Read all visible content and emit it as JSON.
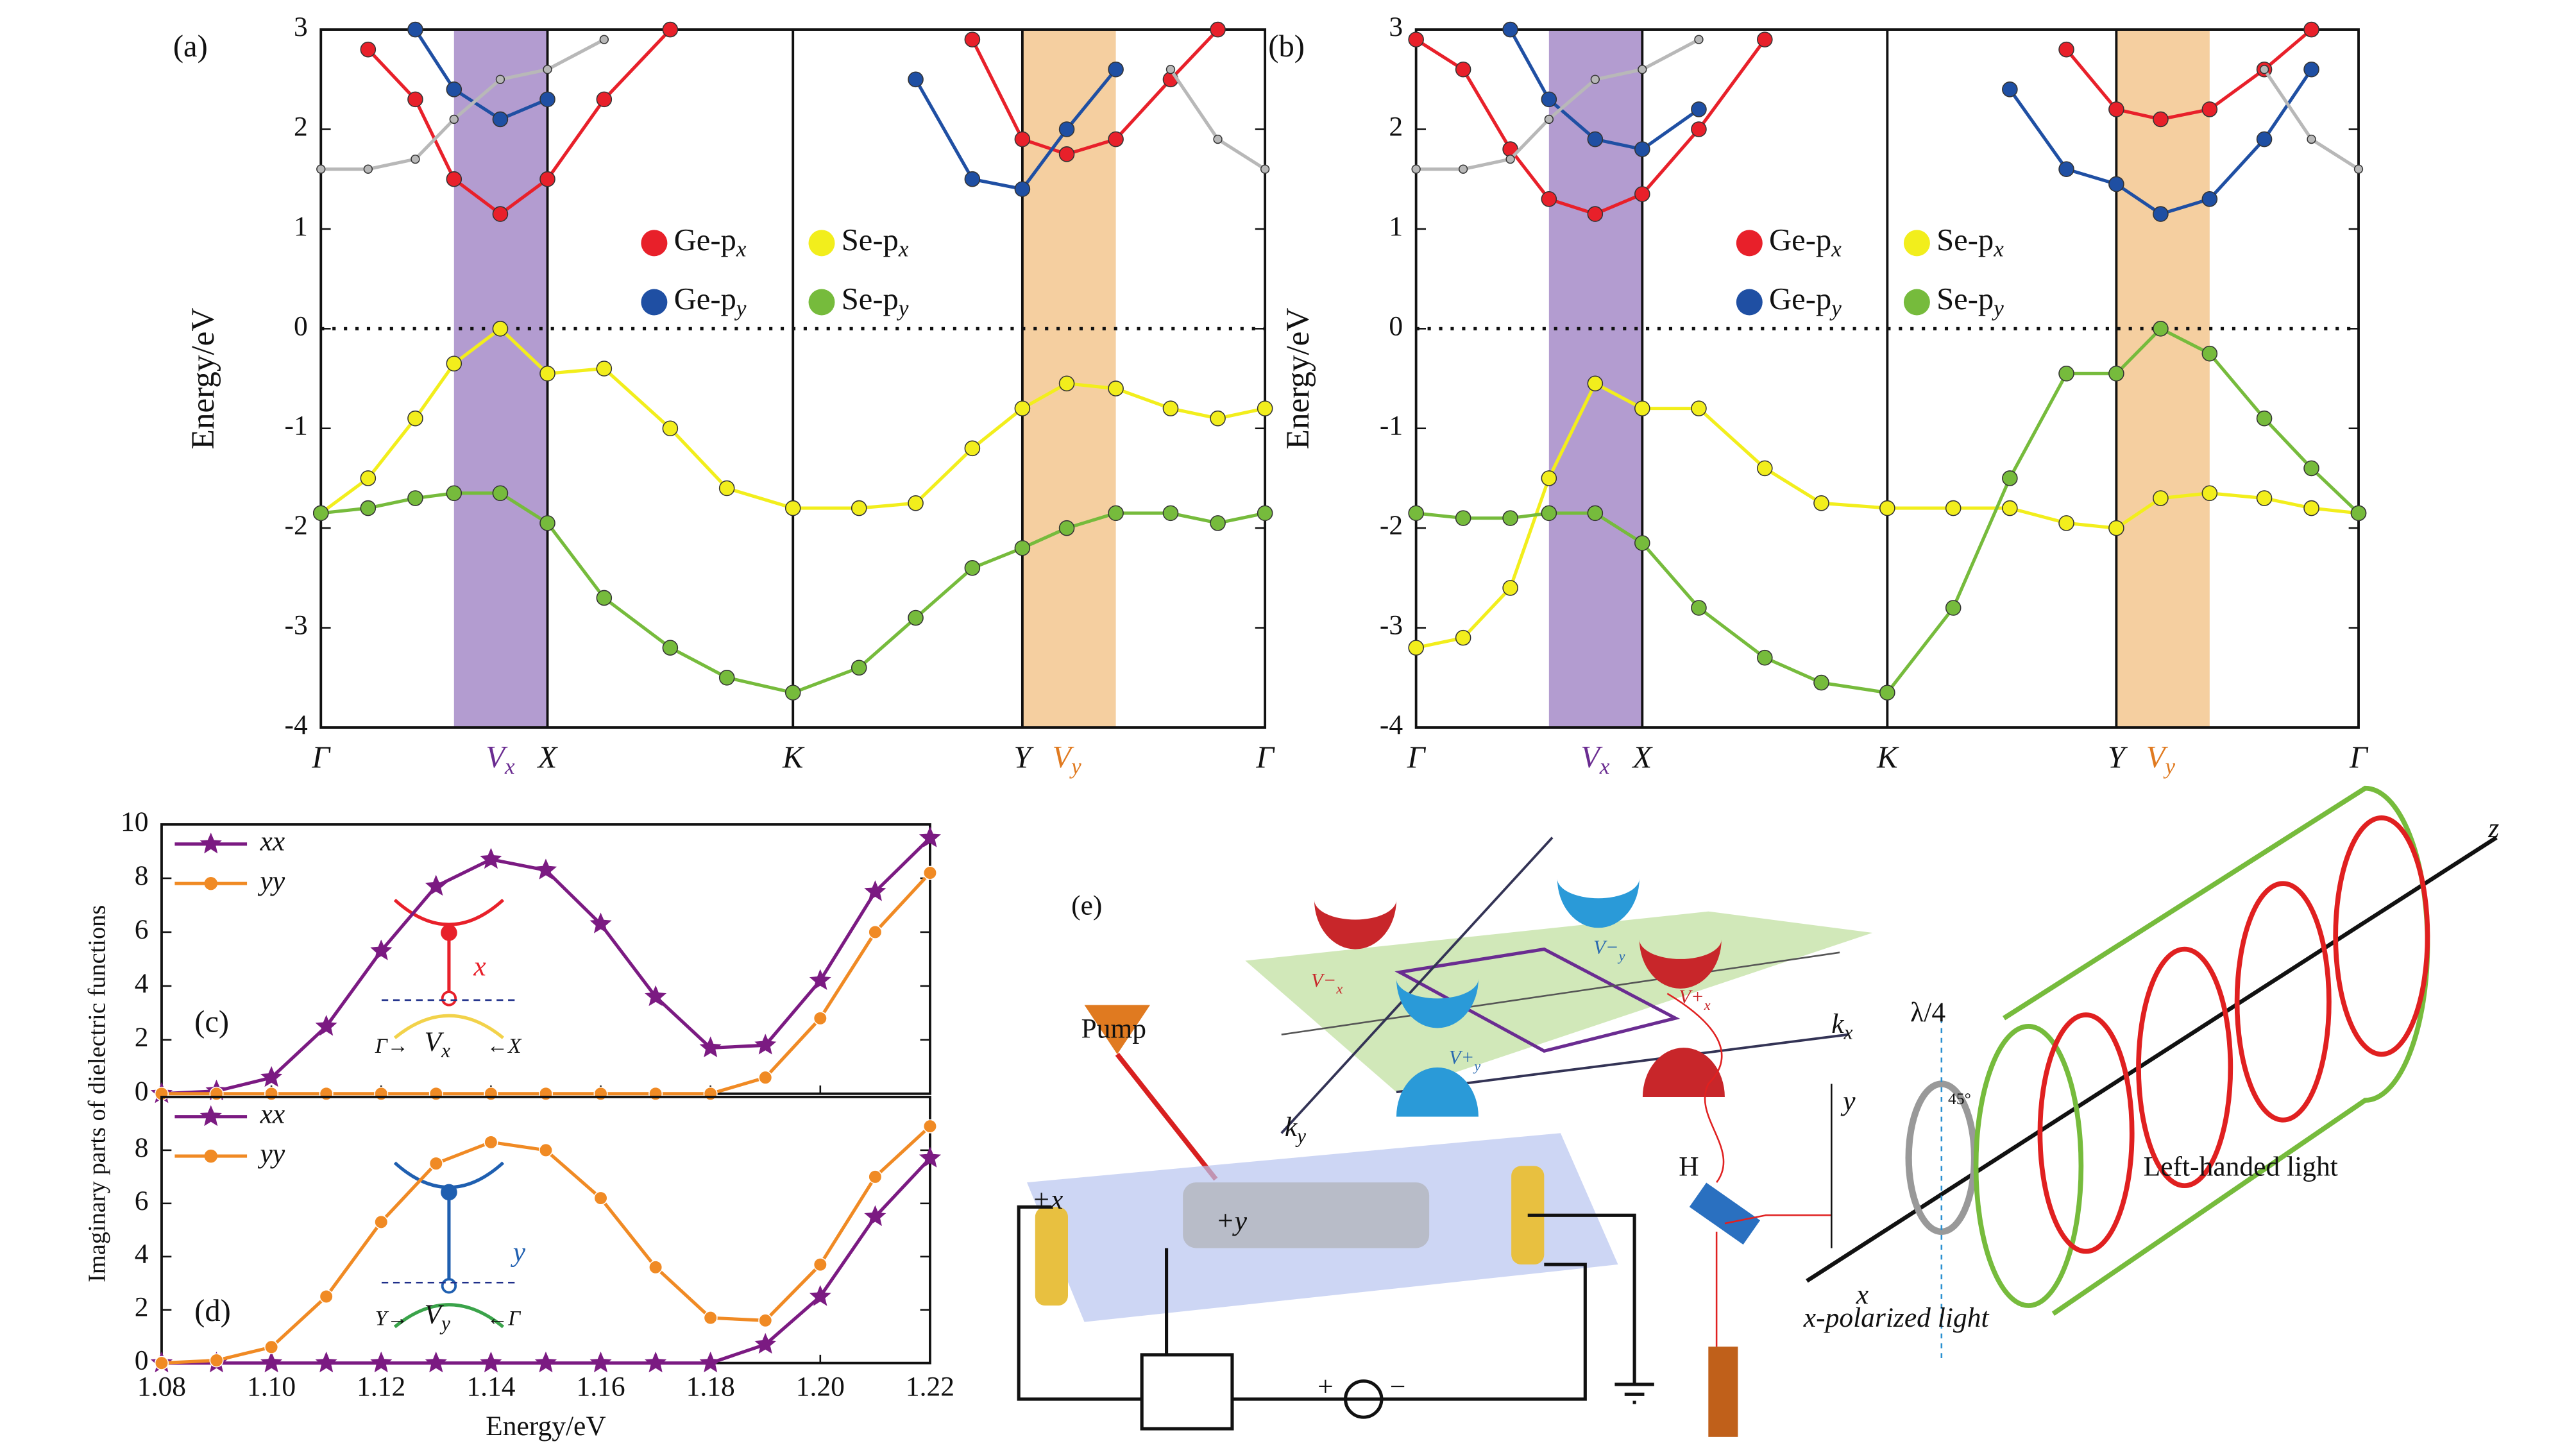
{
  "chart_data": [
    {
      "type": "band",
      "label": "(a)",
      "ylabel": "Energy/eV",
      "xlim": [
        0,
        1
      ],
      "ylim": [
        -4,
        3
      ],
      "yticks": [
        -4,
        -3,
        -2,
        -1,
        0,
        1,
        2,
        3
      ],
      "hline": 0,
      "xticks": [
        {
          "value": 0,
          "label": "Γ"
        },
        {
          "value": 0.19,
          "label": "Vx"
        },
        {
          "value": 0.24,
          "label": "X"
        },
        {
          "value": 0.5,
          "label": "K"
        },
        {
          "value": 0.743,
          "label": "Y"
        },
        {
          "value": 0.79,
          "label": "Vy"
        },
        {
          "value": 1,
          "label": "Γ"
        }
      ],
      "shaded_regions": [
        {
          "x": [
            0.141,
            0.24
          ],
          "color": "#b39cd0"
        },
        {
          "x": [
            0.743,
            0.842
          ],
          "color": "#f5cfa0"
        }
      ],
      "x": [
        0,
        0.05,
        0.1,
        0.141,
        0.19,
        0.24,
        0.3,
        0.37,
        0.43,
        0.5,
        0.57,
        0.63,
        0.69,
        0.743,
        0.79,
        0.842,
        0.9,
        0.95,
        1
      ],
      "series": [
        {
          "name": "Ge-px",
          "color": "#e8202a",
          "values": [
            null,
            2.8,
            2.3,
            1.5,
            1.15,
            1.5,
            2.3,
            3.0,
            null,
            null,
            null,
            null,
            2.9,
            1.9,
            1.75,
            1.9,
            2.5,
            3.0,
            null
          ]
        },
        {
          "name": "Se-px",
          "color": "#f2ee1c",
          "values": [
            -1.85,
            -1.5,
            -0.9,
            -0.35,
            0,
            -0.45,
            -0.4,
            -1.0,
            -1.6,
            -1.8,
            -1.8,
            -1.75,
            -1.2,
            -0.8,
            -0.55,
            -0.6,
            -0.8,
            -0.9,
            -0.8
          ]
        },
        {
          "name": "Ge-py",
          "color": "#1f4fa3",
          "values": [
            null,
            null,
            3.0,
            2.4,
            2.1,
            2.3,
            null,
            null,
            null,
            null,
            null,
            2.5,
            1.5,
            1.4,
            2.0,
            2.6,
            null,
            null,
            null
          ]
        },
        {
          "name": "Se-py",
          "color": "#76bb3c",
          "values": [
            -1.85,
            -1.8,
            -1.7,
            -1.65,
            -1.65,
            -1.95,
            -2.7,
            -3.2,
            -3.5,
            -3.65,
            -3.4,
            -2.9,
            -2.4,
            -2.2,
            -2.0,
            -1.85,
            -1.85,
            -1.95,
            -1.85
          ]
        },
        {
          "color": "#b8b8b8",
          "values": [
            1.6,
            1.6,
            1.7,
            2.1,
            2.5,
            2.6,
            2.9,
            null,
            null,
            null,
            null,
            null,
            null,
            null,
            null,
            null,
            2.6,
            1.9,
            1.6
          ]
        }
      ]
    },
    {
      "type": "band",
      "label": "(b)",
      "ylabel": "Energy/eV",
      "xlim": [
        0,
        1
      ],
      "ylim": [
        -4,
        3
      ],
      "yticks": [
        -4,
        -3,
        -2,
        -1,
        0,
        1,
        2,
        3
      ],
      "hline": 0,
      "xticks": [
        {
          "value": 0,
          "label": "Γ"
        },
        {
          "value": 0.19,
          "label": "Vx"
        },
        {
          "value": 0.24,
          "label": "X"
        },
        {
          "value": 0.5,
          "label": "K"
        },
        {
          "value": 0.743,
          "label": "Y"
        },
        {
          "value": 0.79,
          "label": "Vy"
        },
        {
          "value": 1,
          "label": "Γ"
        }
      ],
      "shaded_regions": [
        {
          "x": [
            0.141,
            0.24
          ],
          "color": "#b39cd0"
        },
        {
          "x": [
            0.743,
            0.842
          ],
          "color": "#f5cfa0"
        }
      ],
      "x": [
        0,
        0.05,
        0.1,
        0.141,
        0.19,
        0.24,
        0.3,
        0.37,
        0.43,
        0.5,
        0.57,
        0.63,
        0.69,
        0.743,
        0.79,
        0.842,
        0.9,
        0.95,
        1
      ],
      "series": [
        {
          "name": "Ge-px",
          "color": "#e8202a",
          "values": [
            2.9,
            2.6,
            1.8,
            1.3,
            1.15,
            1.35,
            2.0,
            2.9,
            null,
            null,
            null,
            null,
            2.8,
            2.2,
            2.1,
            2.2,
            2.6,
            3.0,
            null
          ]
        },
        {
          "name": "Se-px",
          "color": "#f2ee1c",
          "values": [
            -3.2,
            -3.1,
            -2.6,
            -1.5,
            -0.55,
            -0.8,
            -0.8,
            -1.4,
            -1.75,
            -1.8,
            -1.8,
            -1.8,
            -1.95,
            -2.0,
            -1.7,
            -1.65,
            -1.7,
            -1.8,
            -1.85
          ]
        },
        {
          "name": "Ge-py",
          "color": "#1f4fa3",
          "values": [
            null,
            null,
            3.0,
            2.3,
            1.9,
            1.8,
            2.2,
            null,
            null,
            null,
            null,
            2.4,
            1.6,
            1.45,
            1.15,
            1.3,
            1.9,
            2.6,
            null
          ]
        },
        {
          "name": "Se-py",
          "color": "#76bb3c",
          "values": [
            -1.85,
            -1.9,
            -1.9,
            -1.85,
            -1.85,
            -2.15,
            -2.8,
            -3.3,
            -3.55,
            -3.65,
            -2.8,
            -1.5,
            -0.45,
            -0.45,
            0,
            -0.25,
            -0.9,
            -1.4,
            -1.85
          ]
        },
        {
          "color": "#b8b8b8",
          "values": [
            1.6,
            1.6,
            1.7,
            2.1,
            2.5,
            2.6,
            2.9,
            null,
            null,
            null,
            null,
            null,
            null,
            null,
            null,
            null,
            2.6,
            1.9,
            1.6
          ]
        }
      ]
    },
    {
      "type": "line",
      "label": "(c)",
      "ylabel": "Imaginary parts of dielectric functions",
      "xlim": [
        1.08,
        1.22
      ],
      "ylim": [
        0,
        10
      ],
      "yticks": [
        0,
        2,
        4,
        6,
        8,
        10
      ],
      "xticks": [
        1.08,
        1.1,
        1.12,
        1.14,
        1.16,
        1.18,
        1.2,
        1.22
      ],
      "x": [
        1.08,
        1.09,
        1.1,
        1.11,
        1.12,
        1.13,
        1.14,
        1.15,
        1.16,
        1.17,
        1.18,
        1.19,
        1.2,
        1.21,
        1.22
      ],
      "series": [
        {
          "name": "xx",
          "color": "#7b1a82",
          "marker": "star",
          "values": [
            0,
            0.1,
            0.6,
            2.5,
            5.3,
            7.7,
            8.7,
            8.3,
            6.3,
            3.6,
            1.7,
            1.8,
            4.2,
            7.5,
            9.5
          ]
        },
        {
          "name": "yy",
          "color": "#f08a24",
          "marker": "circle",
          "values": [
            0,
            0,
            0,
            0,
            0,
            0,
            0,
            0,
            0,
            0,
            0,
            0.6,
            2.8,
            6.0,
            8.2
          ]
        }
      ],
      "annotations": [
        "x",
        "Γ→",
        "Vx",
        "←X"
      ]
    },
    {
      "type": "line",
      "label": "(d)",
      "xlabel": "Energy/eV",
      "xlim": [
        1.08,
        1.22
      ],
      "ylim": [
        0,
        10
      ],
      "yticks": [
        0,
        2,
        4,
        6,
        8
      ],
      "xticks": [
        {
          "value": 1.08,
          "label": "1.08"
        },
        {
          "value": 1.1,
          "label": "1.10"
        },
        {
          "value": 1.12,
          "label": "1.12"
        },
        {
          "value": 1.14,
          "label": "1.14"
        },
        {
          "value": 1.16,
          "label": "1.16"
        },
        {
          "value": 1.18,
          "label": "1.18"
        },
        {
          "value": 1.2,
          "label": "1.20"
        },
        {
          "value": 1.22,
          "label": "1.22"
        }
      ],
      "x": [
        1.08,
        1.09,
        1.1,
        1.11,
        1.12,
        1.13,
        1.14,
        1.15,
        1.16,
        1.17,
        1.18,
        1.19,
        1.2,
        1.21,
        1.22
      ],
      "series": [
        {
          "name": "xx",
          "color": "#7b1a82",
          "marker": "star",
          "values": [
            0,
            0,
            0,
            0,
            0,
            0,
            0,
            0,
            0,
            0,
            0,
            0.7,
            2.5,
            5.5,
            7.7
          ]
        },
        {
          "name": "yy",
          "color": "#f08a24",
          "marker": "circle",
          "values": [
            0,
            0.1,
            0.6,
            2.5,
            5.3,
            7.5,
            8.3,
            8.0,
            6.2,
            3.6,
            1.7,
            1.6,
            3.7,
            7.0,
            8.9
          ]
        }
      ],
      "annotations": [
        "y",
        "Y→",
        "Vy",
        "←Γ"
      ]
    }
  ],
  "diagram": {
    "label": "(e)",
    "pump": "Pump",
    "h": "H",
    "plus_x": "+x",
    "plus_y": "+y",
    "plus": "+",
    "minus": "−",
    "kx": "kx",
    "ky": "ky",
    "v_minus_x": "V−x",
    "v_minus_y": "V−y",
    "v_plus_y": "V+y",
    "v_plus_x": "V+x",
    "lambda": "λ/4",
    "angle": "45°",
    "z": "z",
    "y": "y",
    "x": "x",
    "left_light": "Left-handed light",
    "x_light": "x-polarized light"
  }
}
